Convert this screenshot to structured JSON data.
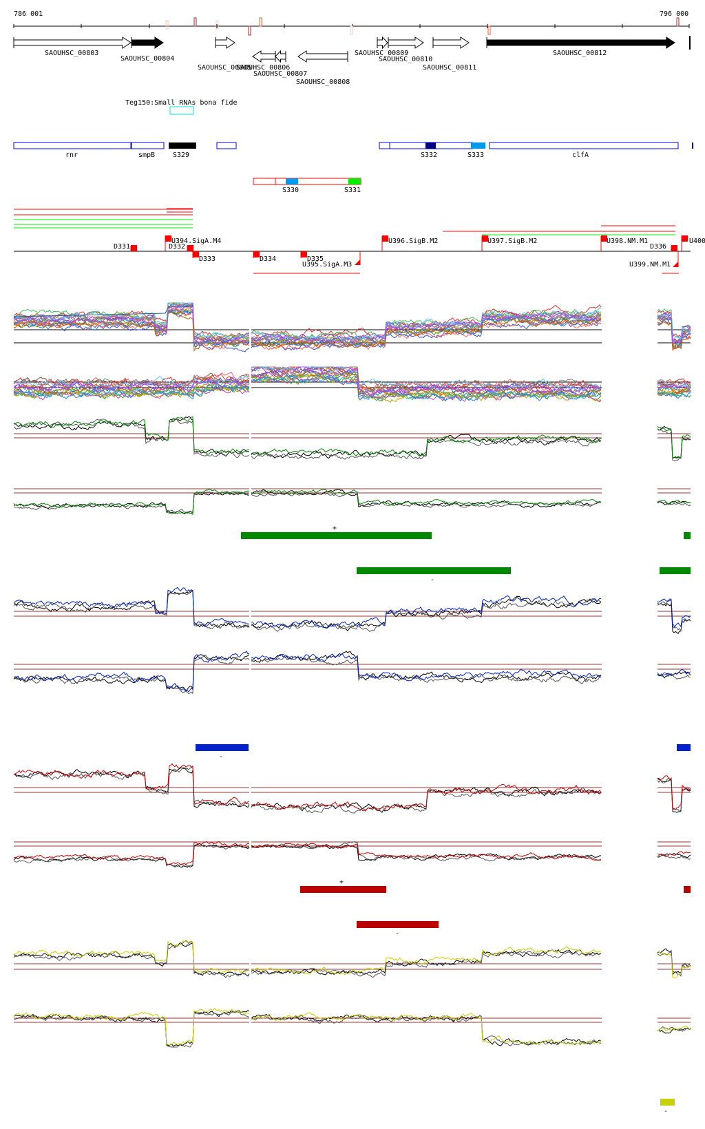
{
  "ruler": {
    "start_label": "786 001",
    "end_label": "796 000"
  },
  "genes": [
    {
      "id": "SAOUHSC_00803",
      "strand": "+",
      "filled": false
    },
    {
      "id": "SAOUHSC_00804",
      "strand": "+",
      "filled": true
    },
    {
      "id": "SAOUHSC_00805",
      "strand": "+",
      "filled": false
    },
    {
      "id": "SAOUHSC_00806",
      "strand": "-",
      "filled": false
    },
    {
      "id": "SAOUHSC_00807",
      "strand": "-",
      "filled": false
    },
    {
      "id": "SAOUHSC_00808",
      "strand": "-",
      "filled": false
    },
    {
      "id": "SAOUHSC_00809",
      "strand": "+",
      "filled": false
    },
    {
      "id": "SAOUHSC_00810",
      "strand": "+",
      "filled": false
    },
    {
      "id": "SAOUHSC_00811",
      "strand": "+",
      "filled": false
    },
    {
      "id": "SAOUHSC_00812",
      "strand": "+",
      "filled": true
    }
  ],
  "small_rna_track": {
    "label": "Teg150:Small RNAs bona fide",
    "color": "#00e0e0"
  },
  "forward_features": [
    {
      "label": "rnr"
    },
    {
      "label": "smpB"
    },
    {
      "label": "S329"
    },
    {
      "label": "S332"
    },
    {
      "label": "S333"
    },
    {
      "label": "clfA"
    }
  ],
  "reverse_features": [
    {
      "label": "S330"
    },
    {
      "label": "S331"
    }
  ],
  "annotations": [
    {
      "label": "D331"
    },
    {
      "label": "U394.SigA.M4"
    },
    {
      "label": "D332"
    },
    {
      "label": "D333"
    },
    {
      "label": "D334"
    },
    {
      "label": "D335"
    },
    {
      "label": "U395.SigA.M3"
    },
    {
      "label": "U396.SigB.M2"
    },
    {
      "label": "U397.SigB.M2"
    },
    {
      "label": "U398.NM.M1"
    },
    {
      "label": "D336"
    },
    {
      "label": "U399.NM.M1"
    },
    {
      "label": "U400"
    }
  ],
  "region_bars": {
    "green_plus": "+",
    "green_minus": "-",
    "blue_minus": "-",
    "red_plus": "+",
    "red_minus": "-",
    "yellow_minus": "-"
  },
  "colors": {
    "forward_track": "#0000dd",
    "reverse_track": "#ff0000",
    "green": "#008800",
    "blue": "#0022cc",
    "red": "#bb0000",
    "yellow": "#c8d000",
    "threshold": "#993333",
    "annotation": "#ff0000"
  }
}
